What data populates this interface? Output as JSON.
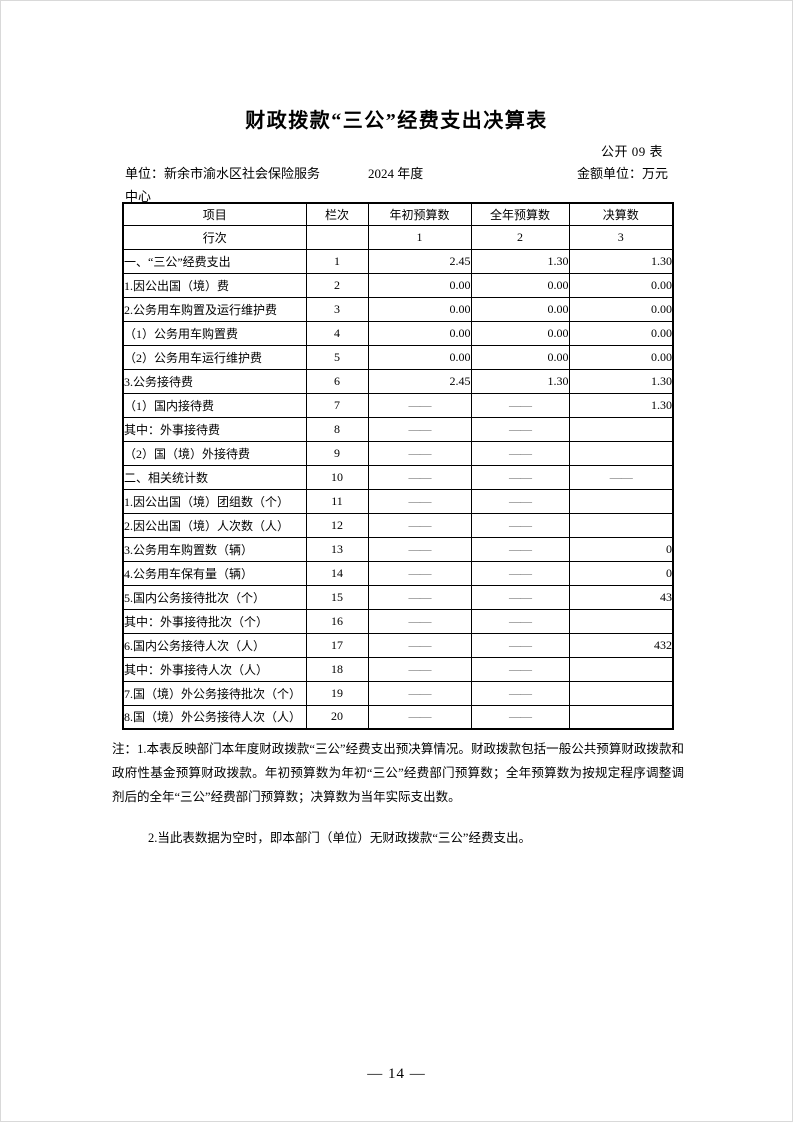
{
  "page": {
    "title": "财政拨款“三公”经费支出决算表",
    "form_code": "公开 09 表",
    "unit_label_line1": "单位：新余市渝水区社会保险服务",
    "unit_label_line2": "中心",
    "year": "2024 年度",
    "amount_unit": "金额单位：万元",
    "page_number": "— 14 —"
  },
  "table": {
    "headers": [
      "项目",
      "栏次",
      "年初预算数",
      "全年预算数",
      "决算数"
    ],
    "subheader": {
      "label": "行次",
      "col": "",
      "c1": "1",
      "c2": "2",
      "c3": "3"
    },
    "rows": [
      {
        "label": "一、“三公”经费支出",
        "indent": 0,
        "col": "1",
        "c1": "2.45",
        "c2": "1.30",
        "c3": "1.30"
      },
      {
        "label": "1.因公出国（境）费",
        "indent": 1,
        "col": "2",
        "c1": "0.00",
        "c2": "0.00",
        "c3": "0.00"
      },
      {
        "label": "2.公务用车购置及运行维护费",
        "indent": 1,
        "col": "3",
        "c1": "0.00",
        "c2": "0.00",
        "c3": "0.00"
      },
      {
        "label": "（1）公务用车购置费",
        "indent": 2,
        "col": "4",
        "c1": "0.00",
        "c2": "0.00",
        "c3": "0.00"
      },
      {
        "label": "（2）公务用车运行维护费",
        "indent": 2,
        "col": "5",
        "c1": "0.00",
        "c2": "0.00",
        "c3": "0.00"
      },
      {
        "label": "3.公务接待费",
        "indent": 1,
        "col": "6",
        "c1": "2.45",
        "c2": "1.30",
        "c3": "1.30"
      },
      {
        "label": "（1）国内接待费",
        "indent": 2,
        "col": "7",
        "c1": "——",
        "c2": "——",
        "c3": "1.30"
      },
      {
        "label": "其中：外事接待费",
        "indent": 4,
        "col": "8",
        "c1": "——",
        "c2": "——",
        "c3": ""
      },
      {
        "label": "（2）国（境）外接待费",
        "indent": 2,
        "col": "9",
        "c1": "——",
        "c2": "——",
        "c3": ""
      },
      {
        "label": "二、相关统计数",
        "indent": 0,
        "col": "10",
        "c1": "——",
        "c2": "——",
        "c3": "——"
      },
      {
        "label": "1.因公出国（境）团组数（个）",
        "indent": 1,
        "col": "11",
        "c1": "——",
        "c2": "——",
        "c3": ""
      },
      {
        "label": "2.因公出国（境）人次数（人）",
        "indent": 1,
        "col": "12",
        "c1": "——",
        "c2": "——",
        "c3": ""
      },
      {
        "label": "3.公务用车购置数（辆）",
        "indent": 1,
        "col": "13",
        "c1": "——",
        "c2": "——",
        "c3": "0"
      },
      {
        "label": "4.公务用车保有量（辆）",
        "indent": 1,
        "col": "14",
        "c1": "——",
        "c2": "——",
        "c3": "0"
      },
      {
        "label": "5.国内公务接待批次（个）",
        "indent": 1,
        "col": "15",
        "c1": "——",
        "c2": "——",
        "c3": "43"
      },
      {
        "label": "其中：外事接待批次（个）",
        "indent": 3,
        "col": "16",
        "c1": "——",
        "c2": "——",
        "c3": ""
      },
      {
        "label": "6.国内公务接待人次（人）",
        "indent": 1,
        "col": "17",
        "c1": "——",
        "c2": "——",
        "c3": "432"
      },
      {
        "label": "其中：外事接待人次（人）",
        "indent": 3,
        "col": "18",
        "c1": "——",
        "c2": "——",
        "c3": ""
      },
      {
        "label": "7.国（境）外公务接待批次（个）",
        "indent": 1,
        "col": "19",
        "c1": "——",
        "c2": "——",
        "c3": ""
      },
      {
        "label": "8.国（境）外公务接待人次（人）",
        "indent": 1,
        "col": "20",
        "c1": "——",
        "c2": "——",
        "c3": ""
      }
    ]
  },
  "notes": {
    "note1": "注：1.本表反映部门本年度财政拨款“三公”经费支出预决算情况。财政拨款包括一般公共预算财政拨款和政府性基金预算财政拨款。年初预算数为年初“三公”经费部门预算数；全年预算数为按规定程序调整调剂后的全年“三公”经费部门预算数；决算数为当年实际支出数。",
    "note2": "2.当此表数据为空时，即本部门（单位）无财政拨款“三公”经费支出。"
  }
}
